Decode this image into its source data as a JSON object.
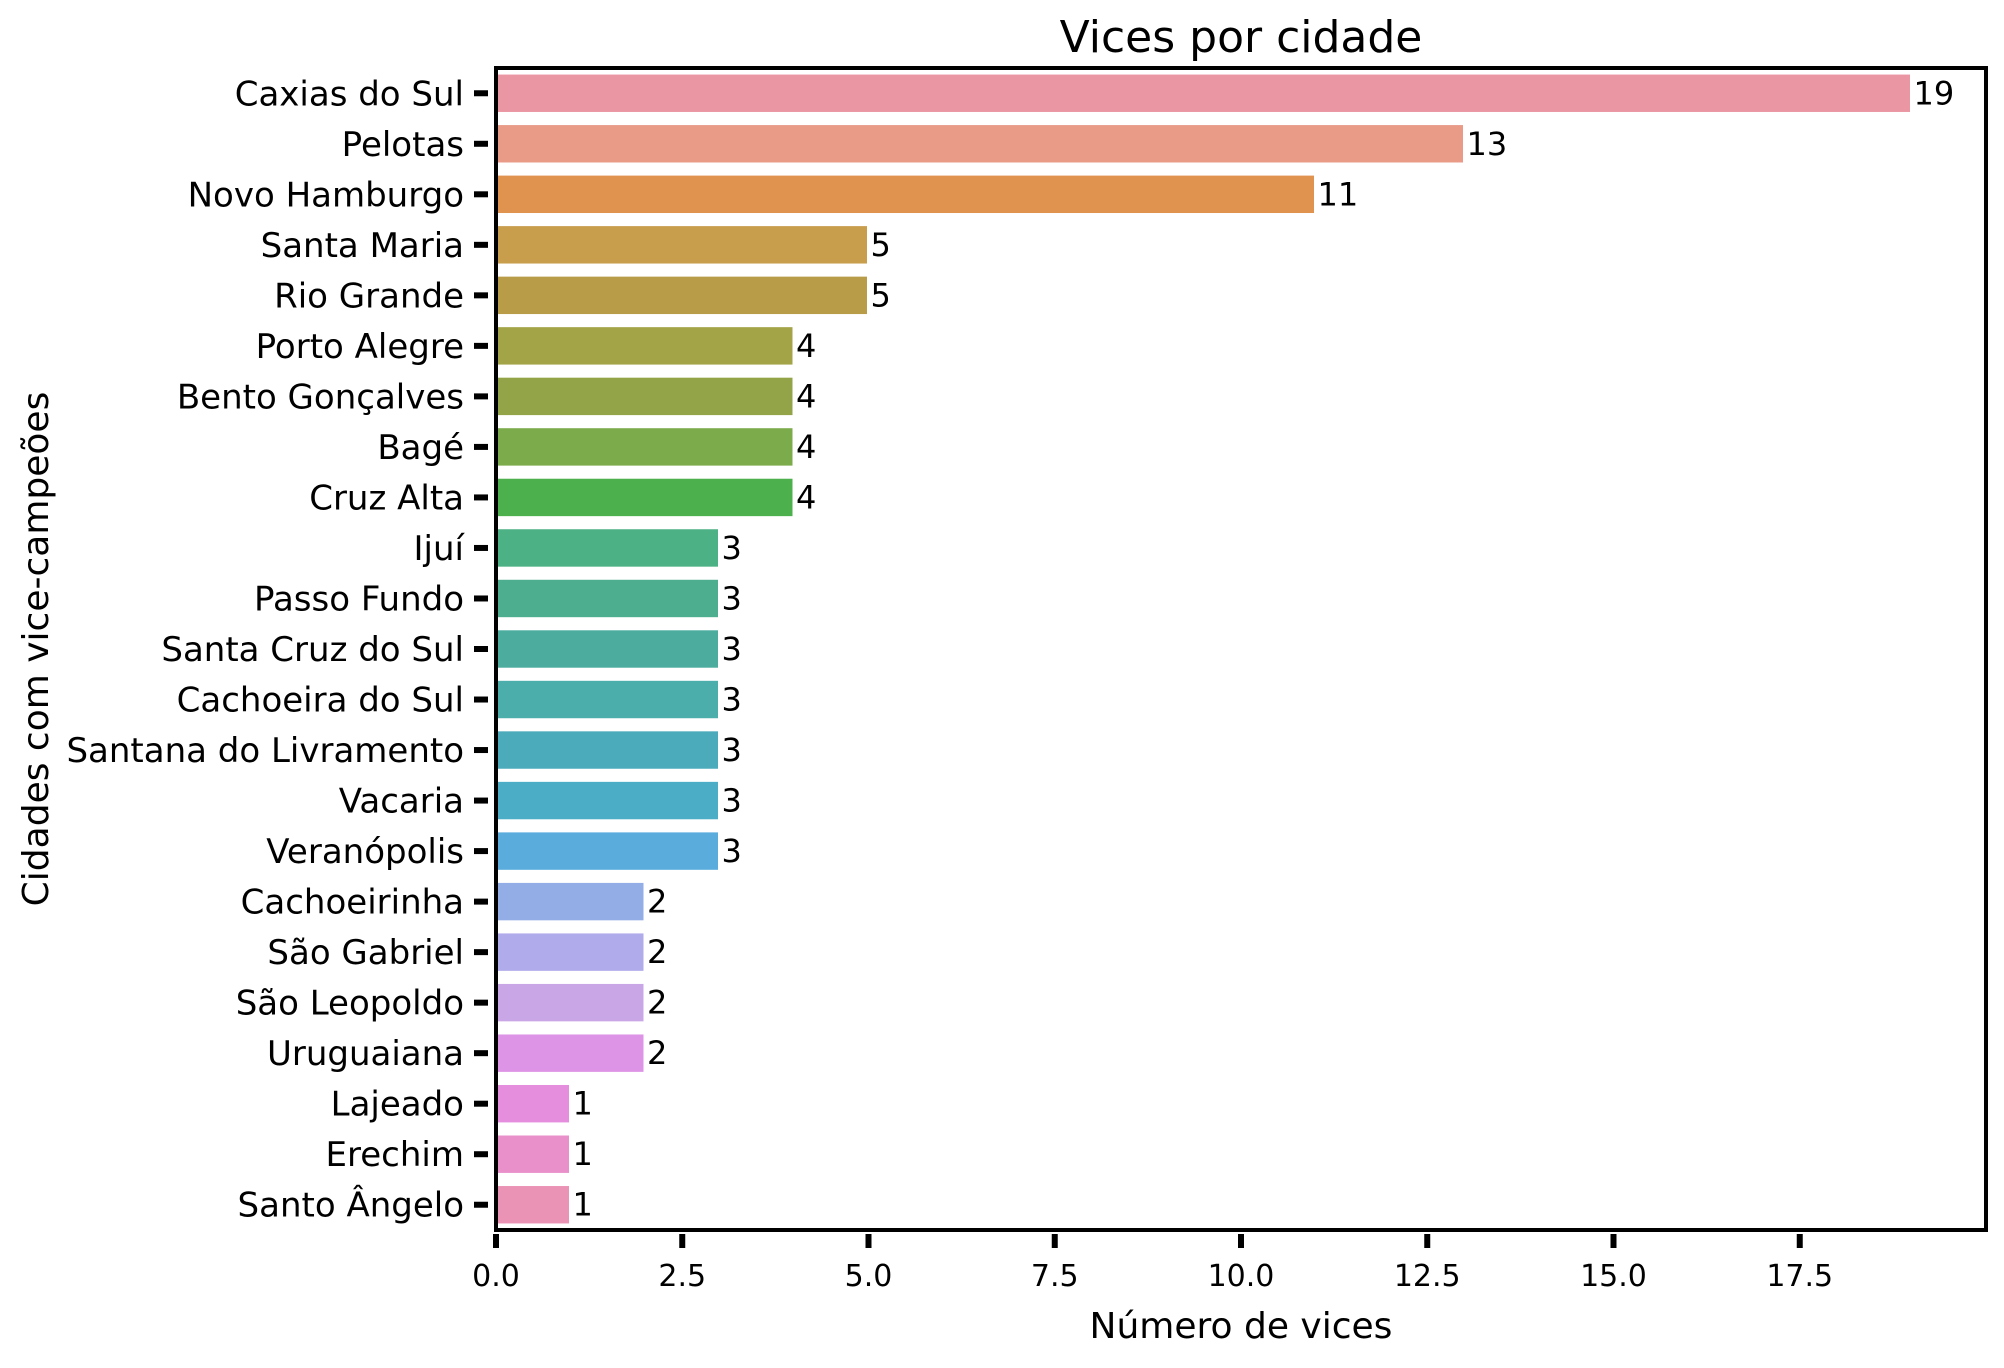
{
  "chart_data": {
    "type": "bar",
    "orientation": "horizontal",
    "title": "Vices por cidade",
    "xlabel": "Número de vices",
    "ylabel": "Cidades com vice-campeões",
    "xlim": [
      0,
      20
    ],
    "xticks": [
      "0.0",
      "2.5",
      "5.0",
      "7.5",
      "10.0",
      "12.5",
      "15.0",
      "17.5"
    ],
    "xtick_values": [
      0,
      2.5,
      5,
      7.5,
      10,
      12.5,
      15,
      17.5
    ],
    "grid": false,
    "categories": [
      "Caxias do Sul",
      "Pelotas",
      "Novo Hamburgo",
      "Santa Maria",
      "Rio Grande",
      "Porto Alegre",
      "Bento Gonçalves",
      "Bagé",
      "Cruz Alta",
      "Ijuí",
      "Passo Fundo",
      "Santa Cruz do Sul",
      "Cachoeira do Sul",
      "Santana do Livramento",
      "Vacaria",
      "Veranópolis",
      "Cachoeirinha",
      "São Gabriel",
      "São Leopoldo",
      "Uruguaiana",
      "Lajeado",
      "Erechim",
      "Santo Ângelo"
    ],
    "values": [
      19,
      13,
      11,
      5,
      5,
      4,
      4,
      4,
      4,
      3,
      3,
      3,
      3,
      3,
      3,
      3,
      2,
      2,
      2,
      2,
      1,
      1,
      1
    ],
    "colors": [
      "#eb96a3",
      "#e99b87",
      "#e0924f",
      "#c89d4b",
      "#b89c47",
      "#a3a347",
      "#93a448",
      "#7cab4c",
      "#4cb04c",
      "#4cb184",
      "#4cae8f",
      "#4cad9f",
      "#4caeab",
      "#4cabbb",
      "#4cadc6",
      "#59acdc",
      "#93aee6",
      "#b0abea",
      "#c9a7e7",
      "#de94e6",
      "#e58ede",
      "#e990cb",
      "#eb93b5"
    ]
  }
}
